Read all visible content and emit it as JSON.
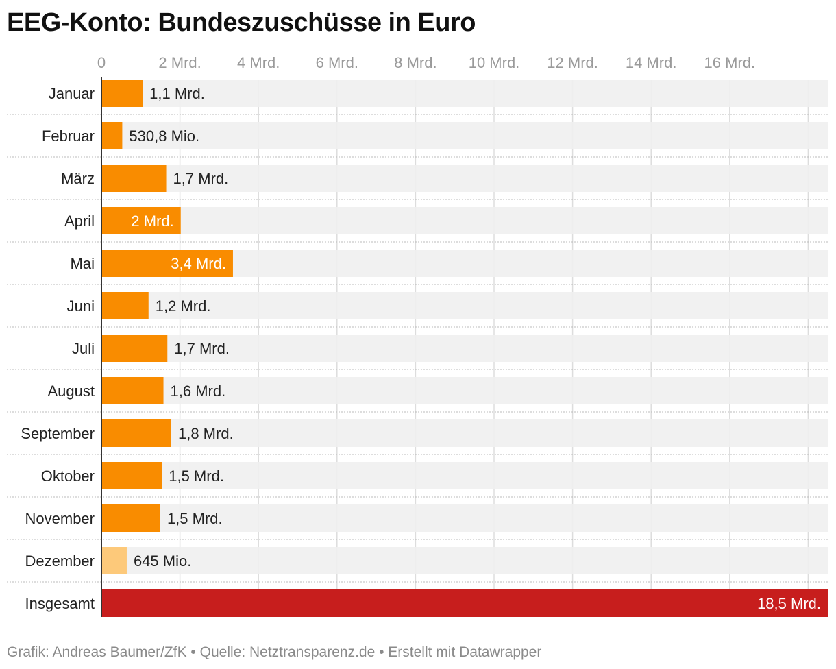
{
  "title": "EEG-Konto: Bundeszuschüsse in Euro",
  "footer": "Grafik: Andreas Baumer/ZfK • Quelle: Netztransparenz.de • Erstellt mit Datawrapper",
  "colors": {
    "bar": "#f98c00",
    "bar_light": "#fdc97a",
    "bar_total": "#c71e1d",
    "track": "#f0f0f0",
    "grid": "#dddddd",
    "axis": "#333333"
  },
  "chart_data": {
    "type": "bar",
    "orientation": "horizontal",
    "title": "EEG-Konto: Bundeszuschüsse in Euro",
    "unit": "Mrd. Euro",
    "xlim": [
      0,
      18.5
    ],
    "ticks": [
      {
        "value": 0,
        "label": "0"
      },
      {
        "value": 2,
        "label": "2 Mrd."
      },
      {
        "value": 4,
        "label": "4 Mrd."
      },
      {
        "value": 6,
        "label": "6 Mrd."
      },
      {
        "value": 8,
        "label": "8 Mrd."
      },
      {
        "value": 10,
        "label": "10 Mrd."
      },
      {
        "value": 12,
        "label": "12 Mrd."
      },
      {
        "value": 14,
        "label": "14 Mrd."
      },
      {
        "value": 16,
        "label": "16 Mrd."
      }
    ],
    "bars": [
      {
        "category": "Januar",
        "value": 1.05,
        "label": "1,1 Mrd.",
        "style": "normal"
      },
      {
        "category": "Februar",
        "value": 0.5308,
        "label": "530,8 Mio.",
        "style": "normal"
      },
      {
        "category": "März",
        "value": 1.65,
        "label": "1,7 Mrd.",
        "style": "normal"
      },
      {
        "category": "April",
        "value": 2.02,
        "label": "2 Mrd.",
        "style": "normal"
      },
      {
        "category": "Mai",
        "value": 3.35,
        "label": "3,4 Mrd.",
        "style": "normal"
      },
      {
        "category": "Juni",
        "value": 1.2,
        "label": "1,2 Mrd.",
        "style": "normal"
      },
      {
        "category": "Juli",
        "value": 1.68,
        "label": "1,7 Mrd.",
        "style": "normal"
      },
      {
        "category": "August",
        "value": 1.58,
        "label": "1,6 Mrd.",
        "style": "normal"
      },
      {
        "category": "September",
        "value": 1.78,
        "label": "1,8 Mrd.",
        "style": "normal"
      },
      {
        "category": "Oktober",
        "value": 1.54,
        "label": "1,5 Mrd.",
        "style": "normal"
      },
      {
        "category": "November",
        "value": 1.5,
        "label": "1,5 Mrd.",
        "style": "normal"
      },
      {
        "category": "Dezember",
        "value": 0.645,
        "label": "645 Mio.",
        "style": "light"
      },
      {
        "category": "Insgesamt",
        "value": 18.5,
        "label": "18,5 Mrd.",
        "style": "total"
      }
    ]
  }
}
